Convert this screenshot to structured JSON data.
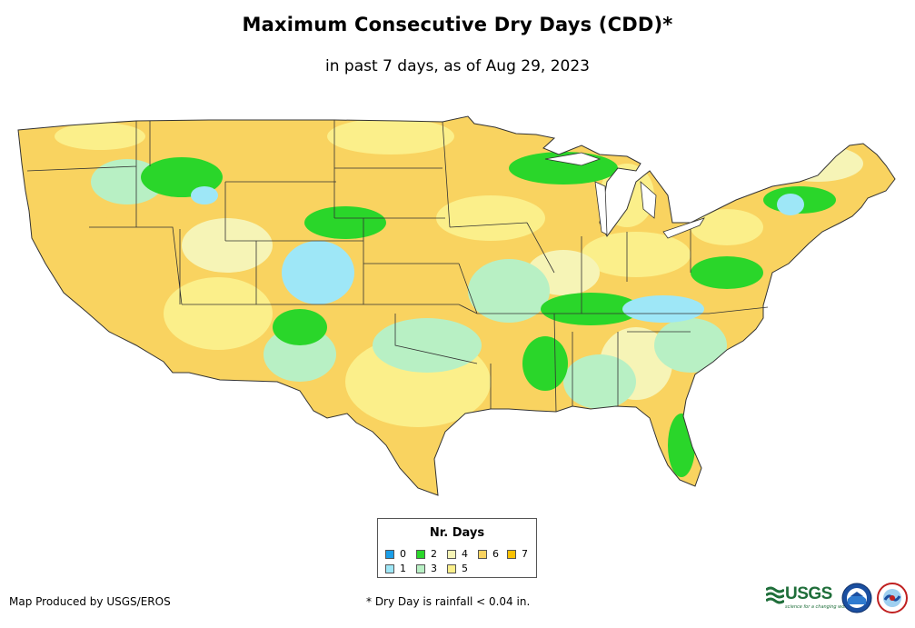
{
  "title": "Maximum Consecutive Dry Days (CDD)*",
  "subtitle": "in past 7 days, as of Aug 29, 2023",
  "legend": {
    "title": "Nr. Days",
    "items": [
      {
        "label": "0",
        "color": "#1a9ee8"
      },
      {
        "label": "1",
        "color": "#9ee7f7"
      },
      {
        "label": "2",
        "color": "#2ad62a"
      },
      {
        "label": "3",
        "color": "#b8f0c4"
      },
      {
        "label": "4",
        "color": "#f6f4b6"
      },
      {
        "label": "5",
        "color": "#fbef8a"
      },
      {
        "label": "6",
        "color": "#f9d360"
      },
      {
        "label": "7",
        "color": "#f9c100"
      }
    ]
  },
  "credit": "Map Produced by USGS/EROS",
  "footnote": "* Dry Day is rainfall < 0.04 in.",
  "logos": {
    "usgs": "USGS",
    "usgs_tagline": "science for a changing world"
  },
  "icons": [
    "usgs-logo-icon",
    "noaa-logo-icon",
    "nws-logo-icon"
  ]
}
